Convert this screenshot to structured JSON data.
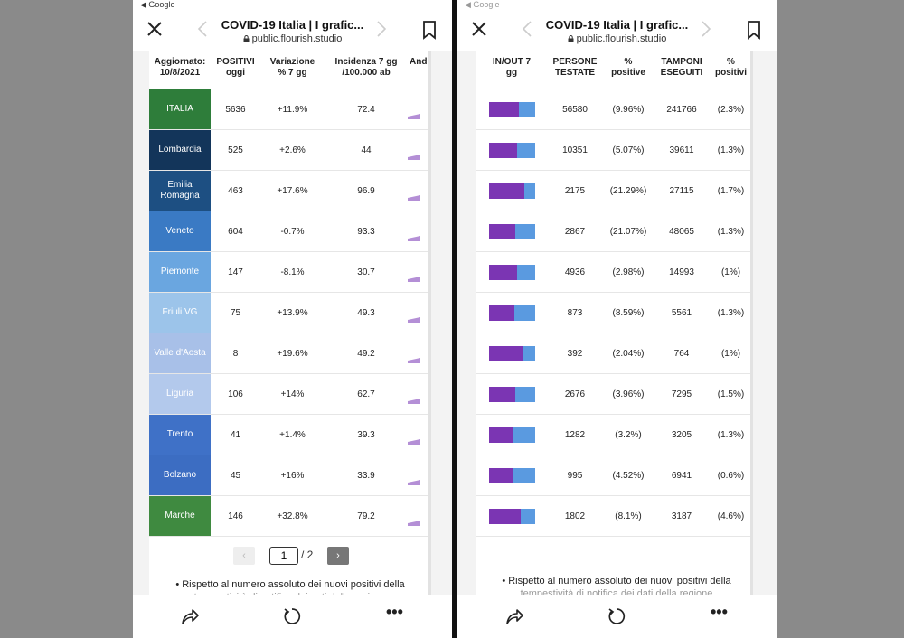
{
  "status_back": "◀ Google",
  "browser": {
    "title": "COVID-19 Italia | I grafic...",
    "url": "public.flourish.studio"
  },
  "left_table": {
    "headers": {
      "updated": "Aggiornato:\n10/8/2021",
      "positivi": "POSITIVI\noggi",
      "variazione": "Variazione\n% 7 gg",
      "incidenza": "Incidenza 7 gg\n/100.000 ab",
      "andamento": "And"
    },
    "rows": [
      {
        "region": "ITALIA",
        "color": "#2e7d3a",
        "positivi": "5636",
        "variazione": "+11.9%",
        "incidenza": "72.4"
      },
      {
        "region": "Lombardia",
        "color": "#13355a",
        "positivi": "525",
        "variazione": "+2.6%",
        "incidenza": "44"
      },
      {
        "region": "Emilia\nRomagna",
        "color": "#1d4f82",
        "positivi": "463",
        "variazione": "+17.6%",
        "incidenza": "96.9"
      },
      {
        "region": "Veneto",
        "color": "#3a7ac4",
        "positivi": "604",
        "variazione": "-0.7%",
        "incidenza": "93.3"
      },
      {
        "region": "Piemonte",
        "color": "#6aa6e0",
        "positivi": "147",
        "variazione": "-8.1%",
        "incidenza": "30.7"
      },
      {
        "region": "Friuli VG",
        "color": "#9cc4ea",
        "positivi": "75",
        "variazione": "+13.9%",
        "incidenza": "49.3"
      },
      {
        "region": "Valle d'Aosta",
        "color": "#a8c0e8",
        "positivi": "8",
        "variazione": "+19.6%",
        "incidenza": "49.2"
      },
      {
        "region": "Liguria",
        "color": "#b3c9ec",
        "positivi": "106",
        "variazione": "+14%",
        "incidenza": "62.7"
      },
      {
        "region": "Trento",
        "color": "#3f71c7",
        "positivi": "41",
        "variazione": "+1.4%",
        "incidenza": "39.3"
      },
      {
        "region": "Bolzano",
        "color": "#3c6dc2",
        "positivi": "45",
        "variazione": "+16%",
        "incidenza": "33.9"
      },
      {
        "region": "Marche",
        "color": "#3f8a40",
        "positivi": "146",
        "variazione": "+32.8%",
        "incidenza": "79.2"
      }
    ]
  },
  "pager": {
    "prev": "‹",
    "current": "1",
    "total": "/ 2",
    "next": "›"
  },
  "right_table": {
    "headers": {
      "inout": "IN/OUT 7\ngg",
      "persone": "PERSONE\nTESTATE",
      "perc_pos": "%\npositive",
      "tamponi": "TAMPONI\nESEGUITI",
      "perc_positivi": "%\npositivi"
    },
    "rows": [
      {
        "in_fraction": 0.66,
        "persone": "56580",
        "perc_pos": "(9.96%)",
        "tamponi": "241766",
        "perc_positivi": "(2.3%)"
      },
      {
        "in_fraction": 0.62,
        "persone": "10351",
        "perc_pos": "(5.07%)",
        "tamponi": "39611",
        "perc_positivi": "(1.3%)"
      },
      {
        "in_fraction": 0.78,
        "persone": "2175",
        "perc_pos": "(21.29%)",
        "tamponi": "27115",
        "perc_positivi": "(1.7%)"
      },
      {
        "in_fraction": 0.57,
        "persone": "2867",
        "perc_pos": "(21.07%)",
        "tamponi": "48065",
        "perc_positivi": "(1.3%)"
      },
      {
        "in_fraction": 0.62,
        "persone": "4936",
        "perc_pos": "(2.98%)",
        "tamponi": "14993",
        "perc_positivi": "(1%)"
      },
      {
        "in_fraction": 0.55,
        "persone": "873",
        "perc_pos": "(8.59%)",
        "tamponi": "5561",
        "perc_positivi": "(1.3%)"
      },
      {
        "in_fraction": 0.76,
        "persone": "392",
        "perc_pos": "(2.04%)",
        "tamponi": "764",
        "perc_positivi": "(1%)"
      },
      {
        "in_fraction": 0.57,
        "persone": "2676",
        "perc_pos": "(3.96%)",
        "tamponi": "7295",
        "perc_positivi": "(1.5%)"
      },
      {
        "in_fraction": 0.53,
        "persone": "1282",
        "perc_pos": "(3.2%)",
        "tamponi": "3205",
        "perc_positivi": "(1.3%)"
      },
      {
        "in_fraction": 0.53,
        "persone": "995",
        "perc_pos": "(4.52%)",
        "tamponi": "6941",
        "perc_positivi": "(0.6%)"
      },
      {
        "in_fraction": 0.7,
        "persone": "1802",
        "perc_pos": "(8.1%)",
        "tamponi": "3187",
        "perc_positivi": "(4.6%)"
      }
    ]
  },
  "footnote": {
    "line1": "• Rispetto al numero assoluto dei nuovi positivi della",
    "line2": "tempestività di notifica dei dati della regione"
  },
  "icons": {
    "close": "close-icon",
    "back": "chevron-left-icon",
    "forward": "chevron-right-icon",
    "bookmark": "bookmark-icon",
    "lock": "lock-icon",
    "share": "share-icon",
    "reload": "reload-icon",
    "more": "more-icon"
  },
  "colors": {
    "bar_in": "#7b35b3",
    "bar_out": "#5a9ae0",
    "sparkline": "#b48fd6"
  }
}
